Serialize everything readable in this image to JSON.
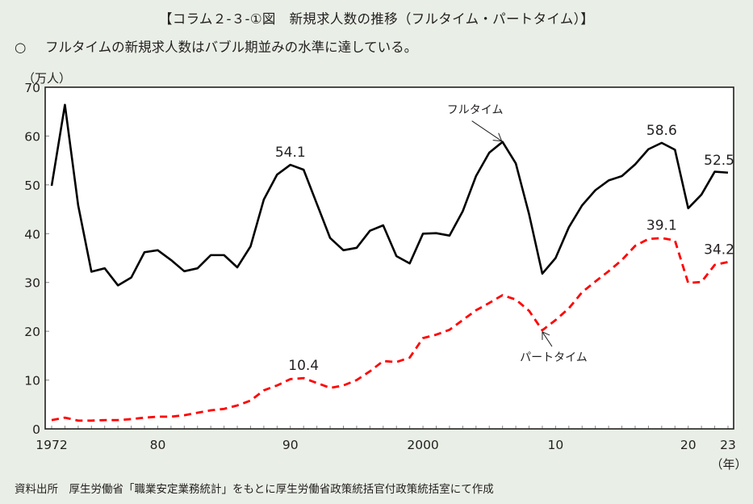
{
  "title": "【コラム２-３-①図　新規求人数の推移（フルタイム・パートタイム）】",
  "subtitle": {
    "bullet": "○",
    "text": "フルタイムの新規求人数はバブル期並みの水準に達している。"
  },
  "source": "資料出所　厚生労働省「職業安定業務統計」をもとに厚生労働省政策統括官付政策統括室にて作成",
  "colors": {
    "background": "#e9efe6",
    "plot_background": "#ffffff",
    "fulltime": "#000000",
    "parttime": "#ff0000"
  },
  "chart_data": {
    "type": "line",
    "title": "新規求人数の推移（フルタイム・パートタイム）",
    "xlabel": "（年）",
    "ylabel": "（万人）",
    "ylim": [
      0,
      70
    ],
    "xlim": [
      1972,
      2023
    ],
    "yticks": [
      0,
      10,
      20,
      30,
      40,
      50,
      60,
      70
    ],
    "xtick_labels": [
      {
        "year": 1972,
        "label": "1972"
      },
      {
        "year": 1980,
        "label": "80"
      },
      {
        "year": 1990,
        "label": "90"
      },
      {
        "year": 2000,
        "label": "2000"
      },
      {
        "year": 2010,
        "label": "10"
      },
      {
        "year": 2020,
        "label": "20"
      },
      {
        "year": 2023,
        "label": "23"
      }
    ],
    "grid": false,
    "x": [
      1972,
      1973,
      1974,
      1975,
      1976,
      1977,
      1978,
      1979,
      1980,
      1981,
      1982,
      1983,
      1984,
      1985,
      1986,
      1987,
      1988,
      1989,
      1990,
      1991,
      1992,
      1993,
      1994,
      1995,
      1996,
      1997,
      1998,
      1999,
      2000,
      2001,
      2002,
      2003,
      2004,
      2005,
      2006,
      2007,
      2008,
      2009,
      2010,
      2011,
      2012,
      2013,
      2014,
      2015,
      2016,
      2017,
      2018,
      2019,
      2020,
      2021,
      2022,
      2023
    ],
    "series": [
      {
        "name": "フルタイム",
        "style": "solid",
        "values": [
          49.8,
          66.4,
          45.8,
          32.2,
          32.9,
          29.4,
          31.0,
          36.2,
          36.6,
          34.6,
          32.3,
          32.9,
          35.6,
          35.6,
          33.1,
          37.4,
          47.0,
          52.1,
          54.1,
          53.1,
          46.1,
          39.1,
          36.6,
          37.1,
          40.6,
          41.7,
          35.4,
          33.9,
          40.0,
          40.1,
          39.6,
          44.6,
          51.8,
          56.6,
          58.8,
          54.4,
          44.0,
          31.8,
          35.0,
          41.3,
          45.8,
          48.9,
          50.9,
          51.8,
          54.2,
          57.3,
          58.6,
          57.2,
          45.2,
          48.0,
          52.7,
          52.5
        ]
      },
      {
        "name": "パートタイム",
        "style": "dashed",
        "values": [
          1.8,
          2.3,
          1.7,
          1.7,
          1.8,
          1.8,
          2.0,
          2.3,
          2.5,
          2.5,
          2.8,
          3.3,
          3.8,
          4.1,
          4.8,
          5.8,
          7.9,
          8.9,
          10.2,
          10.4,
          9.4,
          8.4,
          8.9,
          10.0,
          11.8,
          13.9,
          13.7,
          14.6,
          18.6,
          19.3,
          20.3,
          22.3,
          24.3,
          25.8,
          27.4,
          26.5,
          24.2,
          20.2,
          22.3,
          24.7,
          28.0,
          30.2,
          32.3,
          34.6,
          37.5,
          38.9,
          39.1,
          38.6,
          29.9,
          30.1,
          33.6,
          34.2
        ]
      }
    ],
    "annotations": [
      {
        "text": "54.1",
        "series": "フルタイム",
        "year": 1990
      },
      {
        "text": "58.6",
        "series": "フルタイム",
        "year": 2018
      },
      {
        "text": "52.5",
        "series": "フルタイム",
        "year": 2023
      },
      {
        "text": "10.4",
        "series": "パートタイム",
        "year": 1991
      },
      {
        "text": "39.1",
        "series": "パートタイム",
        "year": 2018
      },
      {
        "text": "34.2",
        "series": "パートタイム",
        "year": 2023
      },
      {
        "text": "フルタイム",
        "series": "フルタイム",
        "year": 2006,
        "arrow": true
      },
      {
        "text": "パートタイム",
        "series": "パートタイム",
        "year": 2009,
        "arrow": true
      }
    ]
  }
}
